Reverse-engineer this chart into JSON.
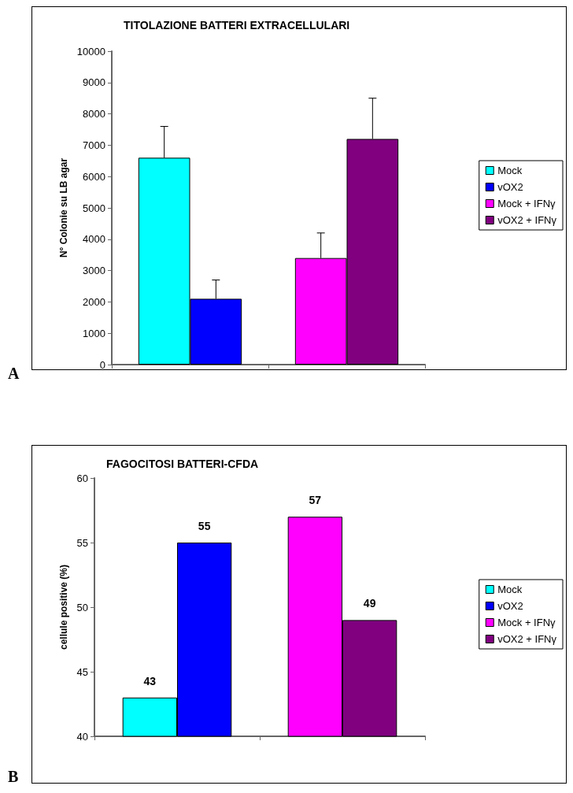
{
  "chart_data": [
    {
      "type": "bar",
      "title": "TITOLAZIONE BATTERI EXTRACELLULARI",
      "ylabel": "N° Colonie su LB agar",
      "categories": [
        null,
        null
      ],
      "series": [
        {
          "name": "Mock",
          "color": "#00ffff",
          "values": [
            6600,
            null
          ],
          "errors": [
            [
              6600,
              7600
            ],
            null
          ]
        },
        {
          "name": "vOX2",
          "color": "#0000ff",
          "values": [
            2100,
            null
          ],
          "errors": [
            [
              2100,
              2700
            ],
            null
          ]
        },
        {
          "name": "Mock + IFNγ",
          "color": "#ff00ff",
          "values": [
            null,
            3400
          ],
          "errors": [
            null,
            [
              3400,
              4200
            ]
          ]
        },
        {
          "name": "vOX2 + IFNγ",
          "color": "#800080",
          "values": [
            null,
            7200
          ],
          "errors": [
            null,
            [
              7200,
              8500
            ]
          ]
        }
      ],
      "ylim": [
        0,
        10000
      ],
      "yticks": [
        0,
        1000,
        2000,
        3000,
        4000,
        5000,
        6000,
        7000,
        8000,
        9000,
        10000
      ],
      "grid": false,
      "legend": "right",
      "annotations": [
        "A"
      ]
    },
    {
      "type": "bar",
      "title": "FAGOCITOSI BATTERI-CFDA",
      "ylabel": "cellule positive (%)",
      "categories": [
        null,
        null
      ],
      "series": [
        {
          "name": "Mock",
          "color": "#00ffff",
          "values": [
            43,
            null
          ]
        },
        {
          "name": "vOX2",
          "color": "#0000ff",
          "values": [
            55,
            null
          ]
        },
        {
          "name": "Mock + IFNγ",
          "color": "#ff00ff",
          "values": [
            null,
            57
          ]
        },
        {
          "name": "vOX2 + IFNγ",
          "color": "#800080",
          "values": [
            null,
            49
          ]
        }
      ],
      "ylim": [
        40,
        60
      ],
      "yticks": [
        40,
        45,
        50,
        55,
        60
      ],
      "grid": false,
      "legend": "right",
      "data_labels": true,
      "annotations": [
        "B"
      ]
    }
  ]
}
